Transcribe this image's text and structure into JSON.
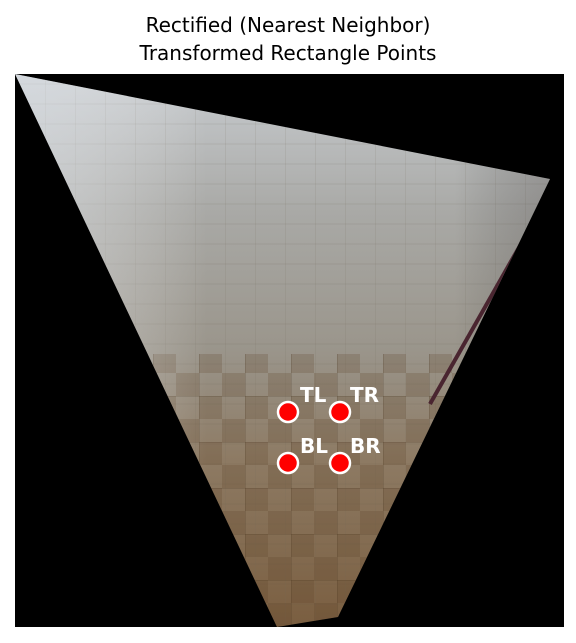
{
  "title": {
    "line1": "Rectified (Nearest Neighbor)",
    "line2": "Transformed Rectangle Points"
  },
  "background_color": "#000000",
  "marker_color": "#ff0000",
  "marker_edge_color": "#ffffff",
  "label_color": "#ffffff",
  "points": [
    {
      "label": "TL"
    },
    {
      "label": "TR"
    },
    {
      "label": "BL"
    },
    {
      "label": "BR"
    }
  ]
}
